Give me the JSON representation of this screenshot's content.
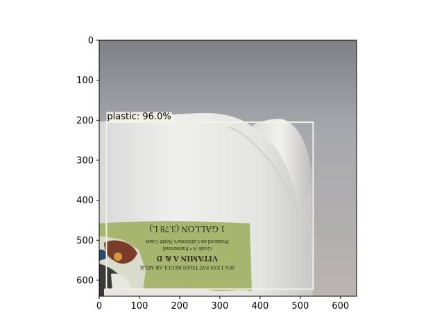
{
  "detection": {
    "label": "plastic: 96.0%",
    "class": "plastic",
    "confidence_percent": 96.0,
    "box_color": "#f3f3e6",
    "box": {
      "x0": 18,
      "y0": 205,
      "x1": 532,
      "y1": 622
    }
  },
  "axes": {
    "xlim": [
      0,
      640
    ],
    "ylim": [
      640,
      0
    ],
    "x_ticks": [
      "0",
      "100",
      "200",
      "300",
      "400",
      "500",
      "600"
    ],
    "y_ticks": [
      "0",
      "100",
      "200",
      "300",
      "400",
      "500",
      "600"
    ]
  },
  "label_text": {
    "line1": "1 GALLON (3.78 L)",
    "line2": "Produced on California's North Coast",
    "line3": "Grade A • Pasteurized",
    "line4": "VITAMIN A & D",
    "line5": "38% LESS FAT THAN REGULAR MILK"
  },
  "colors": {
    "background": "#8d8e92",
    "jug": "#e9e9e7",
    "label_green": "#a7b56e"
  }
}
